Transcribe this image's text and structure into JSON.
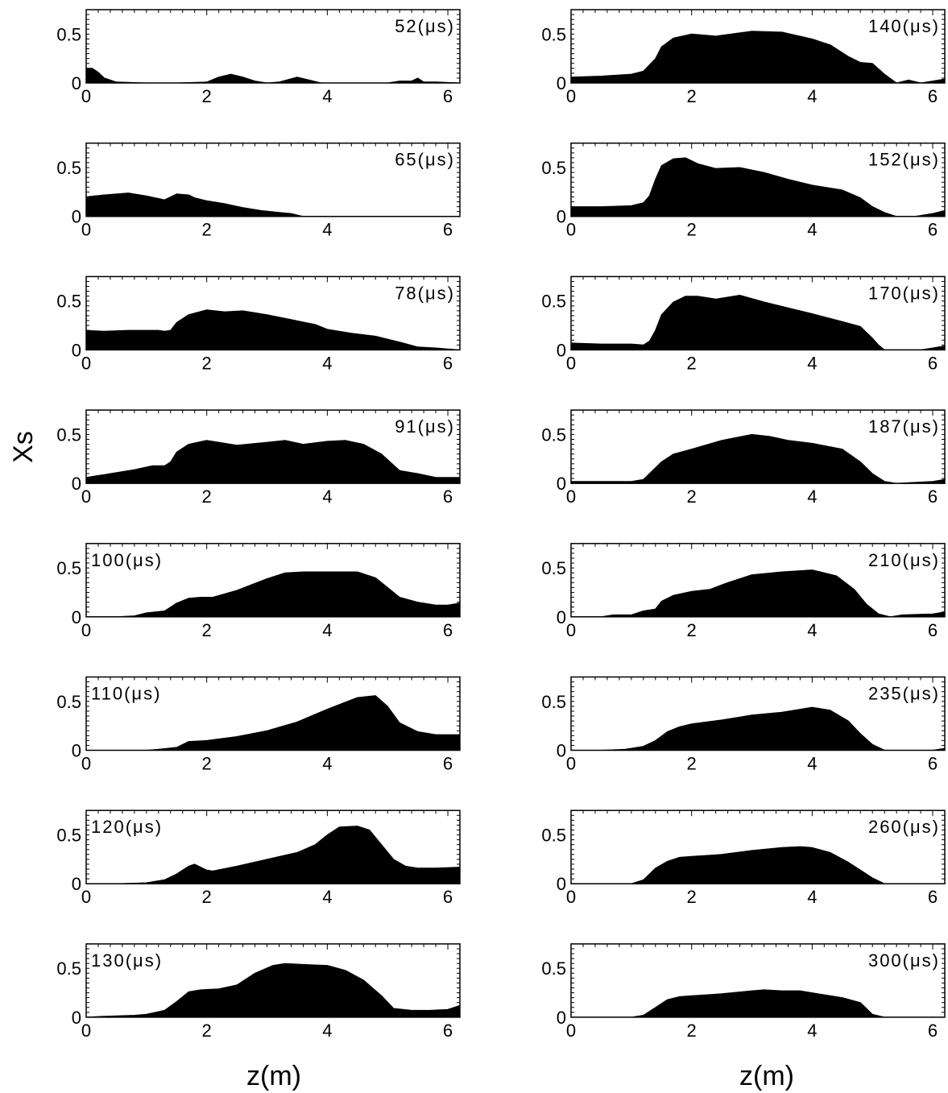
{
  "figure": {
    "ylabel": "Xs",
    "xlabel_left": "z(m)",
    "xlabel_right": "z(m)"
  },
  "chart_data": [
    {
      "type": "area",
      "column": "left",
      "time_label": "52(μs)",
      "label_position": "right",
      "xlim": [
        0,
        6.2
      ],
      "ylim": [
        0,
        0.75
      ],
      "xticks": [
        "0",
        "2",
        "4",
        "6"
      ],
      "yticks": [
        "0",
        "0.5"
      ],
      "x": [
        0,
        0.1,
        0.2,
        0.3,
        0.5,
        1.0,
        1.5,
        2.0,
        2.2,
        2.4,
        2.6,
        2.8,
        3.0,
        3.2,
        3.5,
        3.7,
        3.9,
        4.5,
        5.0,
        5.2,
        5.4,
        5.5,
        5.6,
        5.8,
        6.2
      ],
      "y": [
        0.15,
        0.15,
        0.11,
        0.05,
        0.01,
        0,
        0,
        0.01,
        0.06,
        0.09,
        0.06,
        0.02,
        0,
        0.01,
        0.06,
        0.03,
        0,
        0,
        0,
        0.02,
        0.02,
        0.05,
        0.01,
        0.01,
        0
      ]
    },
    {
      "type": "area",
      "column": "left",
      "time_label": "65(μs)",
      "label_position": "right",
      "xlim": [
        0,
        6.2
      ],
      "ylim": [
        0,
        0.75
      ],
      "xticks": [
        "0",
        "2",
        "4",
        "6"
      ],
      "yticks": [
        "0",
        "0.5"
      ],
      "x": [
        0,
        0.3,
        0.7,
        1.0,
        1.3,
        1.4,
        1.5,
        1.7,
        1.8,
        2.0,
        2.3,
        2.6,
        2.9,
        3.2,
        3.4,
        3.6,
        4.0,
        6.2
      ],
      "y": [
        0.2,
        0.22,
        0.24,
        0.21,
        0.17,
        0.2,
        0.23,
        0.22,
        0.19,
        0.16,
        0.13,
        0.09,
        0.06,
        0.04,
        0.03,
        0,
        0,
        0
      ]
    },
    {
      "type": "area",
      "column": "left",
      "time_label": "78(μs)",
      "label_position": "right",
      "xlim": [
        0,
        6.2
      ],
      "ylim": [
        0,
        0.75
      ],
      "xticks": [
        "0",
        "2",
        "4",
        "6"
      ],
      "yticks": [
        "0",
        "0.5"
      ],
      "x": [
        0,
        0.3,
        0.7,
        1.0,
        1.2,
        1.3,
        1.4,
        1.5,
        1.7,
        2.0,
        2.3,
        2.6,
        3.0,
        3.4,
        3.8,
        4.0,
        4.4,
        4.8,
        5.2,
        5.5,
        5.8,
        6.0,
        6.2
      ],
      "y": [
        0.2,
        0.19,
        0.2,
        0.2,
        0.2,
        0.19,
        0.2,
        0.28,
        0.36,
        0.41,
        0.39,
        0.4,
        0.36,
        0.31,
        0.26,
        0.21,
        0.17,
        0.14,
        0.08,
        0.03,
        0.02,
        0.01,
        0
      ]
    },
    {
      "type": "area",
      "column": "left",
      "time_label": "91(μs)",
      "label_position": "right",
      "xlim": [
        0,
        6.2
      ],
      "ylim": [
        0,
        0.75
      ],
      "xticks": [
        "0",
        "2",
        "4",
        "6"
      ],
      "yticks": [
        "0",
        "0.5"
      ],
      "x": [
        0,
        0.4,
        0.8,
        1.1,
        1.3,
        1.4,
        1.5,
        1.7,
        2.0,
        2.5,
        3.0,
        3.3,
        3.6,
        4.0,
        4.3,
        4.6,
        4.9,
        5.2,
        5.5,
        5.8,
        6.2
      ],
      "y": [
        0.06,
        0.1,
        0.14,
        0.18,
        0.18,
        0.22,
        0.32,
        0.4,
        0.44,
        0.39,
        0.42,
        0.44,
        0.4,
        0.43,
        0.44,
        0.4,
        0.3,
        0.13,
        0.1,
        0.06,
        0.06
      ]
    },
    {
      "type": "area",
      "column": "left",
      "time_label": "100(μs)",
      "label_position": "left",
      "xlim": [
        0,
        6.2
      ],
      "ylim": [
        0,
        0.75
      ],
      "xticks": [
        "0",
        "2",
        "4",
        "6"
      ],
      "yticks": [
        "0",
        "0.5"
      ],
      "x": [
        0,
        0.5,
        0.8,
        1.0,
        1.3,
        1.5,
        1.7,
        1.9,
        2.1,
        2.5,
        3.0,
        3.3,
        3.6,
        4.0,
        4.5,
        4.8,
        5.0,
        5.2,
        5.5,
        5.8,
        6.0,
        6.2
      ],
      "y": [
        0,
        0,
        0.01,
        0.04,
        0.06,
        0.14,
        0.19,
        0.2,
        0.2,
        0.27,
        0.39,
        0.45,
        0.46,
        0.46,
        0.46,
        0.4,
        0.3,
        0.2,
        0.15,
        0.12,
        0.12,
        0.14
      ]
    },
    {
      "type": "area",
      "column": "left",
      "time_label": "110(μs)",
      "label_position": "left",
      "xlim": [
        0,
        6.2
      ],
      "ylim": [
        0,
        0.75
      ],
      "xticks": [
        "0",
        "2",
        "4",
        "6"
      ],
      "yticks": [
        "0",
        "0.5"
      ],
      "x": [
        0,
        1.0,
        1.2,
        1.5,
        1.7,
        2.0,
        2.5,
        3.0,
        3.5,
        4.0,
        4.5,
        4.8,
        5.0,
        5.2,
        5.5,
        5.8,
        6.2
      ],
      "y": [
        0,
        0,
        0.01,
        0.03,
        0.09,
        0.1,
        0.14,
        0.2,
        0.29,
        0.42,
        0.54,
        0.56,
        0.45,
        0.28,
        0.19,
        0.16,
        0.16
      ]
    },
    {
      "type": "area",
      "column": "left",
      "time_label": "120(μs)",
      "label_position": "left",
      "xlim": [
        0,
        6.2
      ],
      "ylim": [
        0,
        0.75
      ],
      "xticks": [
        "0",
        "2",
        "4",
        "6"
      ],
      "yticks": [
        "0",
        "0.5"
      ],
      "x": [
        0,
        0.5,
        1.0,
        1.3,
        1.5,
        1.7,
        1.8,
        2.0,
        2.1,
        2.5,
        3.0,
        3.5,
        3.8,
        4.0,
        4.2,
        4.5,
        4.7,
        4.9,
        5.1,
        5.3,
        5.5,
        5.8,
        6.2
      ],
      "y": [
        0,
        0,
        0.01,
        0.04,
        0.1,
        0.18,
        0.2,
        0.14,
        0.13,
        0.18,
        0.25,
        0.32,
        0.4,
        0.5,
        0.58,
        0.59,
        0.55,
        0.4,
        0.25,
        0.18,
        0.16,
        0.16,
        0.17
      ]
    },
    {
      "type": "area",
      "column": "left",
      "time_label": "130(μs)",
      "label_position": "left",
      "xlim": [
        0,
        6.2
      ],
      "ylim": [
        0,
        0.75
      ],
      "xticks": [
        "0",
        "2",
        "4",
        "6"
      ],
      "yticks": [
        "0",
        "0.5"
      ],
      "x": [
        0,
        0.3,
        0.8,
        1.0,
        1.3,
        1.5,
        1.7,
        1.9,
        2.2,
        2.5,
        2.8,
        3.1,
        3.3,
        3.6,
        4.0,
        4.3,
        4.6,
        4.9,
        5.1,
        5.4,
        5.7,
        6.0,
        6.2
      ],
      "y": [
        0,
        0.01,
        0.02,
        0.03,
        0.07,
        0.16,
        0.26,
        0.28,
        0.29,
        0.33,
        0.45,
        0.53,
        0.55,
        0.54,
        0.53,
        0.48,
        0.38,
        0.22,
        0.09,
        0.07,
        0.07,
        0.08,
        0.12
      ]
    },
    {
      "type": "area",
      "column": "right",
      "time_label": "140(μs)",
      "label_position": "right",
      "xlim": [
        0,
        6.2
      ],
      "ylim": [
        0,
        0.75
      ],
      "xticks": [
        "0",
        "2",
        "4",
        "6"
      ],
      "yticks": [
        "0",
        "0.5"
      ],
      "x": [
        0,
        0.5,
        1.0,
        1.2,
        1.4,
        1.5,
        1.7,
        2.0,
        2.4,
        3.0,
        3.5,
        4.0,
        4.3,
        4.6,
        4.8,
        5.0,
        5.2,
        5.4,
        5.6,
        5.8,
        6.0,
        6.2
      ],
      "y": [
        0.06,
        0.07,
        0.09,
        0.12,
        0.25,
        0.37,
        0.46,
        0.5,
        0.48,
        0.53,
        0.52,
        0.45,
        0.39,
        0.27,
        0.21,
        0.2,
        0.09,
        0,
        0.03,
        0,
        0.02,
        0.04
      ]
    },
    {
      "type": "area",
      "column": "right",
      "time_label": "152(μs)",
      "label_position": "right",
      "xlim": [
        0,
        6.2
      ],
      "ylim": [
        0,
        0.75
      ],
      "xticks": [
        "0",
        "2",
        "4",
        "6"
      ],
      "yticks": [
        "0",
        "0.5"
      ],
      "x": [
        0,
        0.5,
        1.0,
        1.2,
        1.3,
        1.4,
        1.5,
        1.7,
        1.9,
        2.1,
        2.4,
        2.8,
        3.2,
        3.6,
        4.0,
        4.5,
        4.8,
        5.0,
        5.2,
        5.4,
        5.7,
        6.0,
        6.2
      ],
      "y": [
        0.1,
        0.1,
        0.11,
        0.14,
        0.21,
        0.38,
        0.52,
        0.59,
        0.6,
        0.54,
        0.49,
        0.5,
        0.45,
        0.38,
        0.32,
        0.27,
        0.19,
        0.1,
        0.04,
        0,
        0,
        0.03,
        0.06
      ]
    },
    {
      "type": "area",
      "column": "right",
      "time_label": "170(μs)",
      "label_position": "right",
      "xlim": [
        0,
        6.2
      ],
      "ylim": [
        0,
        0.75
      ],
      "xticks": [
        "0",
        "2",
        "4",
        "6"
      ],
      "yticks": [
        "0",
        "0.5"
      ],
      "x": [
        0,
        0.5,
        1.0,
        1.2,
        1.3,
        1.4,
        1.5,
        1.7,
        1.9,
        2.1,
        2.4,
        2.8,
        3.2,
        3.6,
        4.0,
        4.5,
        4.8,
        5.0,
        5.1,
        5.2,
        5.4,
        5.8,
        6.0,
        6.2
      ],
      "y": [
        0.07,
        0.06,
        0.06,
        0.05,
        0.09,
        0.2,
        0.36,
        0.49,
        0.55,
        0.55,
        0.52,
        0.56,
        0.49,
        0.43,
        0.37,
        0.29,
        0.24,
        0.12,
        0.05,
        0,
        0,
        0,
        0.02,
        0.04
      ]
    },
    {
      "type": "area",
      "column": "right",
      "time_label": "187(μs)",
      "label_position": "right",
      "xlim": [
        0,
        6.2
      ],
      "ylim": [
        0,
        0.75
      ],
      "xticks": [
        "0",
        "2",
        "4",
        "6"
      ],
      "yticks": [
        "0",
        "0.5"
      ],
      "x": [
        0,
        0.5,
        1.0,
        1.2,
        1.3,
        1.5,
        1.7,
        2.0,
        2.5,
        3.0,
        3.3,
        3.6,
        4.0,
        4.5,
        4.8,
        5.0,
        5.2,
        5.4,
        5.7,
        6.0,
        6.2
      ],
      "y": [
        0.02,
        0.02,
        0.02,
        0.04,
        0.1,
        0.22,
        0.3,
        0.35,
        0.44,
        0.5,
        0.48,
        0.44,
        0.41,
        0.35,
        0.22,
        0.1,
        0.02,
        0,
        0.01,
        0.02,
        0.04
      ]
    },
    {
      "type": "area",
      "column": "right",
      "time_label": "210(μs)",
      "label_position": "right",
      "xlim": [
        0,
        6.2
      ],
      "ylim": [
        0,
        0.75
      ],
      "xticks": [
        "0",
        "2",
        "4",
        "6"
      ],
      "yticks": [
        "0",
        "0.5"
      ],
      "x": [
        0,
        0.5,
        0.7,
        1.0,
        1.2,
        1.4,
        1.5,
        1.7,
        2.0,
        2.3,
        2.6,
        3.0,
        3.5,
        4.0,
        4.4,
        4.7,
        4.9,
        5.1,
        5.3,
        5.5,
        6.0,
        6.2
      ],
      "y": [
        0,
        0,
        0.02,
        0.02,
        0.06,
        0.08,
        0.16,
        0.22,
        0.26,
        0.28,
        0.35,
        0.43,
        0.46,
        0.48,
        0.42,
        0.28,
        0.13,
        0.03,
        0,
        0.02,
        0.03,
        0.05
      ]
    },
    {
      "type": "area",
      "column": "right",
      "time_label": "235(μs)",
      "label_position": "right",
      "xlim": [
        0,
        6.2
      ],
      "ylim": [
        0,
        0.75
      ],
      "xticks": [
        "0",
        "2",
        "4",
        "6"
      ],
      "yticks": [
        "0",
        "0.5"
      ],
      "x": [
        0,
        0.5,
        0.9,
        1.2,
        1.4,
        1.6,
        1.8,
        2.0,
        2.5,
        3.0,
        3.5,
        4.0,
        4.3,
        4.6,
        4.8,
        5.0,
        5.2,
        5.5,
        6.0,
        6.2
      ],
      "y": [
        0,
        0,
        0.01,
        0.04,
        0.1,
        0.19,
        0.24,
        0.27,
        0.31,
        0.36,
        0.39,
        0.44,
        0.41,
        0.3,
        0.17,
        0.06,
        0,
        0,
        0,
        0.02
      ]
    },
    {
      "type": "area",
      "column": "right",
      "time_label": "260(μs)",
      "label_position": "right",
      "xlim": [
        0,
        6.2
      ],
      "ylim": [
        0,
        0.75
      ],
      "xticks": [
        "0",
        "2",
        "4",
        "6"
      ],
      "yticks": [
        "0",
        "0.5"
      ],
      "x": [
        0,
        0.5,
        1.0,
        1.2,
        1.4,
        1.6,
        1.8,
        2.0,
        2.5,
        3.0,
        3.5,
        3.8,
        4.0,
        4.3,
        4.6,
        4.8,
        5.0,
        5.2,
        5.5,
        6.2
      ],
      "y": [
        0,
        0,
        0,
        0.04,
        0.16,
        0.23,
        0.27,
        0.28,
        0.3,
        0.34,
        0.37,
        0.38,
        0.37,
        0.32,
        0.22,
        0.14,
        0.06,
        0,
        0,
        0
      ]
    },
    {
      "type": "area",
      "column": "right",
      "time_label": "300(μs)",
      "label_position": "right",
      "xlim": [
        0,
        6.2
      ],
      "ylim": [
        0,
        0.75
      ],
      "xticks": [
        "0",
        "2",
        "4",
        "6"
      ],
      "yticks": [
        "0",
        "0.5"
      ],
      "x": [
        0,
        0.5,
        1.0,
        1.2,
        1.4,
        1.6,
        1.8,
        2.0,
        2.5,
        3.0,
        3.2,
        3.5,
        3.8,
        4.0,
        4.5,
        4.8,
        4.9,
        5.0,
        5.2,
        6.2
      ],
      "y": [
        0,
        0,
        0,
        0.02,
        0.1,
        0.18,
        0.21,
        0.22,
        0.24,
        0.27,
        0.28,
        0.27,
        0.27,
        0.25,
        0.2,
        0.15,
        0.09,
        0.03,
        0,
        0
      ]
    }
  ]
}
